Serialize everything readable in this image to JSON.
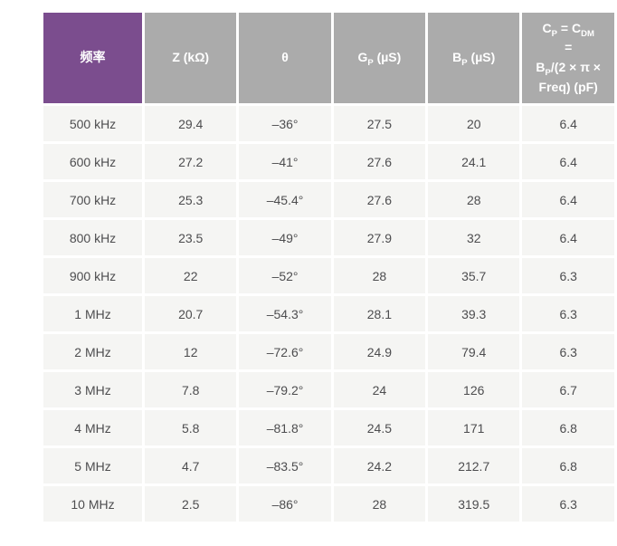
{
  "colors": {
    "page_background": "#ffffff",
    "header_background": "#ababab",
    "freq_header_background": "#7b4d8e",
    "header_text": "#ffffff",
    "row_background": "#f5f5f3",
    "cell_text": "#4d4d4f"
  },
  "table": {
    "columns": [
      {
        "name": "freq",
        "parts": [
          {
            "t": "频率"
          }
        ]
      },
      {
        "name": "z",
        "parts": [
          {
            "t": "Z (kΩ)"
          }
        ]
      },
      {
        "name": "theta",
        "parts": [
          {
            "t": "θ"
          }
        ]
      },
      {
        "name": "gp",
        "parts": [
          {
            "t": "G"
          },
          {
            "s": "P"
          },
          {
            "t": " (µS)"
          }
        ]
      },
      {
        "name": "bp",
        "parts": [
          {
            "t": "B"
          },
          {
            "s": "P"
          },
          {
            "t": " (µS)"
          }
        ]
      },
      {
        "name": "cp",
        "parts": [
          {
            "t": "C"
          },
          {
            "s": "P"
          },
          {
            "t": " = C"
          },
          {
            "s": "DM"
          },
          {
            "br": true
          },
          {
            "t": "="
          },
          {
            "br": true
          },
          {
            "t": "B"
          },
          {
            "s": "P"
          },
          {
            "t": "/(2 × π ×"
          },
          {
            "br": true
          },
          {
            "t": "Freq) (pF)"
          }
        ]
      }
    ],
    "rows": [
      [
        "500 kHz",
        "29.4",
        "–36°",
        "27.5",
        "20",
        "6.4"
      ],
      [
        "600 kHz",
        "27.2",
        "–41°",
        "27.6",
        "24.1",
        "6.4"
      ],
      [
        "700 kHz",
        "25.3",
        "–45.4°",
        "27.6",
        "28",
        "6.4"
      ],
      [
        "800 kHz",
        "23.5",
        "–49°",
        "27.9",
        "32",
        "6.4"
      ],
      [
        "900 kHz",
        "22",
        "–52°",
        "28",
        "35.7",
        "6.3"
      ],
      [
        "1 MHz",
        "20.7",
        "–54.3°",
        "28.1",
        "39.3",
        "6.3"
      ],
      [
        "2 MHz",
        "12",
        "–72.6°",
        "24.9",
        "79.4",
        "6.3"
      ],
      [
        "3 MHz",
        "7.8",
        "–79.2°",
        "24",
        "126",
        "6.7"
      ],
      [
        "4 MHz",
        "5.8",
        "–81.8°",
        "24.5",
        "171",
        "6.8"
      ],
      [
        "5 MHz",
        "4.7",
        "–83.5°",
        "24.2",
        "212.7",
        "6.8"
      ],
      [
        "10 MHz",
        "2.5",
        "–86°",
        "28",
        "319.5",
        "6.3"
      ]
    ]
  },
  "chart_data": {
    "type": "table",
    "title": "",
    "columns": [
      "频率",
      "Z (kΩ)",
      "θ",
      "GP (µS)",
      "BP (µS)",
      "CP = CDM = BP/(2 × π × Freq) (pF)"
    ],
    "rows": [
      {
        "freq": "500 kHz",
        "z_kohm": 29.4,
        "theta_deg": -36,
        "gp_us": 27.5,
        "bp_us": 20,
        "cp_pf": 6.4
      },
      {
        "freq": "600 kHz",
        "z_kohm": 27.2,
        "theta_deg": -41,
        "gp_us": 27.6,
        "bp_us": 24.1,
        "cp_pf": 6.4
      },
      {
        "freq": "700 kHz",
        "z_kohm": 25.3,
        "theta_deg": -45.4,
        "gp_us": 27.6,
        "bp_us": 28,
        "cp_pf": 6.4
      },
      {
        "freq": "800 kHz",
        "z_kohm": 23.5,
        "theta_deg": -49,
        "gp_us": 27.9,
        "bp_us": 32,
        "cp_pf": 6.4
      },
      {
        "freq": "900 kHz",
        "z_kohm": 22,
        "theta_deg": -52,
        "gp_us": 28,
        "bp_us": 35.7,
        "cp_pf": 6.3
      },
      {
        "freq": "1 MHz",
        "z_kohm": 20.7,
        "theta_deg": -54.3,
        "gp_us": 28.1,
        "bp_us": 39.3,
        "cp_pf": 6.3
      },
      {
        "freq": "2 MHz",
        "z_kohm": 12,
        "theta_deg": -72.6,
        "gp_us": 24.9,
        "bp_us": 79.4,
        "cp_pf": 6.3
      },
      {
        "freq": "3 MHz",
        "z_kohm": 7.8,
        "theta_deg": -79.2,
        "gp_us": 24,
        "bp_us": 126,
        "cp_pf": 6.7
      },
      {
        "freq": "4 MHz",
        "z_kohm": 5.8,
        "theta_deg": -81.8,
        "gp_us": 24.5,
        "bp_us": 171,
        "cp_pf": 6.8
      },
      {
        "freq": "5 MHz",
        "z_kohm": 4.7,
        "theta_deg": -83.5,
        "gp_us": 24.2,
        "bp_us": 212.7,
        "cp_pf": 6.8
      },
      {
        "freq": "10 MHz",
        "z_kohm": 2.5,
        "theta_deg": -86,
        "gp_us": 28,
        "bp_us": 319.5,
        "cp_pf": 6.3
      }
    ]
  }
}
